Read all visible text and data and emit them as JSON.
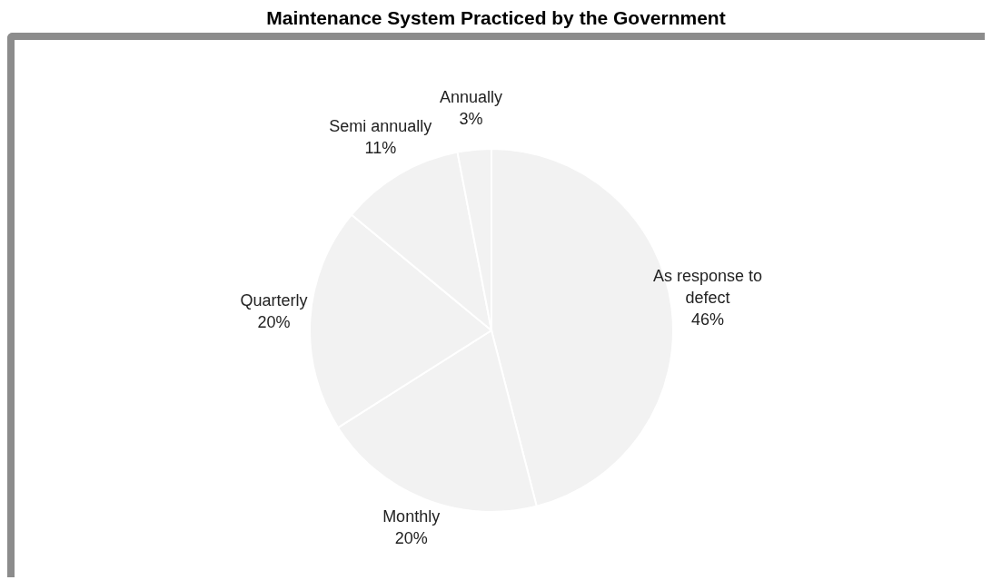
{
  "chart_data": {
    "type": "pie",
    "title": "Maintenance System Practiced by the Government",
    "categories": [
      "As response to defect",
      "Monthly",
      "Quarterly",
      "Semi annually",
      "Annually"
    ],
    "values": [
      46,
      20,
      20,
      11,
      3
    ],
    "value_labels": [
      "46%",
      "20%",
      "20%",
      "11%",
      "3%"
    ],
    "colors": [
      "#f2f2f2",
      "#f2f2f2",
      "#f2f2f2",
      "#f2f2f2",
      "#f2f2f2"
    ]
  }
}
